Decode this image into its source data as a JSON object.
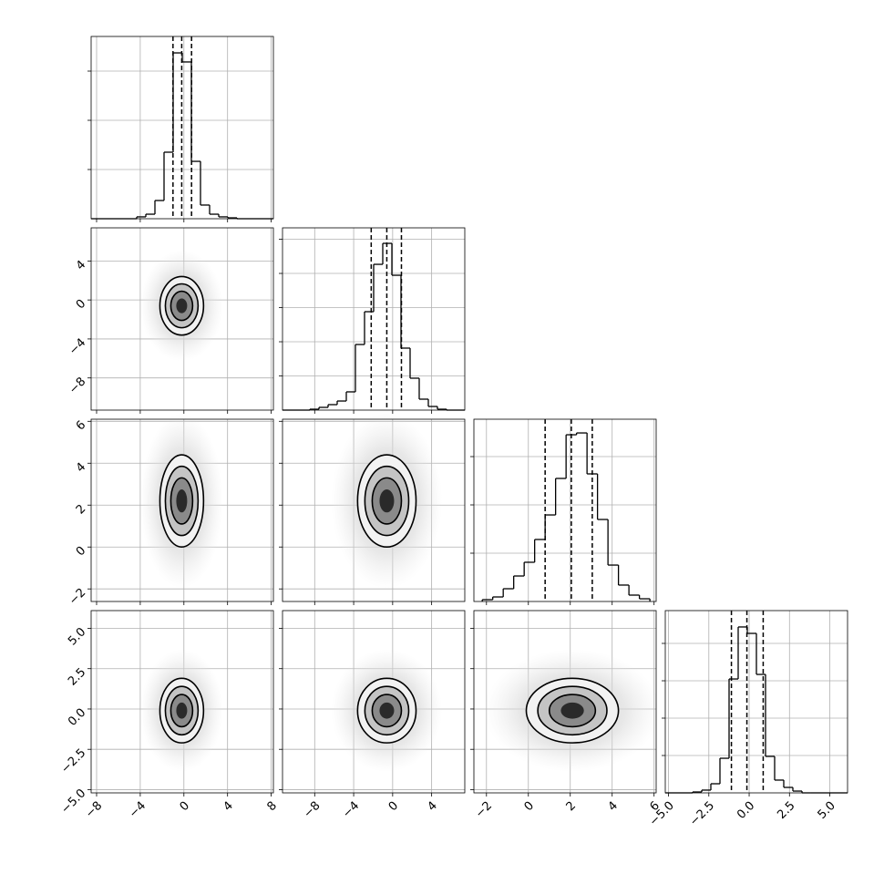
{
  "chart_data": {
    "type": "corner",
    "grid": true,
    "variables": [
      {
        "xlim": [
          -8.5,
          8.2
        ],
        "xticks": [
          {
            "value": -8,
            "label": "−8"
          },
          {
            "value": -4,
            "label": "−4"
          },
          0,
          4,
          8
        ]
      },
      {
        "xlim": [
          -11.3,
          7.4
        ],
        "xticks": [
          {
            "value": -8,
            "label": "−8"
          },
          {
            "value": -4,
            "label": "−4"
          },
          0,
          4
        ]
      },
      {
        "xlim": [
          -2.6,
          6.1
        ],
        "xticks": [
          {
            "value": -2,
            "label": "−2"
          },
          0,
          2,
          4,
          6
        ]
      },
      {
        "xlim": [
          -5.2,
          6.1
        ],
        "xticks": [
          {
            "value": -5,
            "label": "−5.0"
          },
          {
            "value": -2.5,
            "label": "−2.5"
          },
          {
            "value": 0,
            "label": "0.0"
          },
          {
            "value": 2.5,
            "label": "2.5"
          },
          {
            "value": 5,
            "label": "5.0"
          }
        ]
      }
    ],
    "histograms": [
      {
        "bins": [
          -8.5,
          -7.665,
          -6.83,
          -5.995,
          -5.16,
          -4.325,
          -3.49,
          -2.655,
          -1.82,
          -0.985,
          -0.15,
          0.685,
          1.52,
          2.355,
          3.19,
          4.025,
          4.86,
          5.695,
          6.53,
          7.365,
          8.2
        ],
        "counts": [
          0,
          0,
          0,
          0,
          0,
          19,
          46,
          185,
          676,
          1685,
          1593,
          583,
          139,
          46,
          19,
          9,
          0,
          0,
          0,
          0
        ],
        "ylim": [
          0,
          1852
        ],
        "yticks": [
          500,
          1000,
          1500
        ],
        "quantiles": [
          -1.0,
          -0.2,
          0.7
        ]
      },
      {
        "bins": [
          -11.3,
          -10.365,
          -9.43,
          -8.495,
          -7.56,
          -6.625,
          -5.69,
          -4.755,
          -3.82,
          -2.885,
          -1.95,
          -1.015,
          -0.08,
          0.855,
          1.79,
          2.725,
          3.66,
          4.595,
          5.53,
          6.465,
          7.4
        ],
        "counts": [
          0,
          0,
          0,
          13,
          40,
          80,
          133,
          267,
          960,
          1440,
          2133,
          2440,
          1973,
          907,
          467,
          160,
          53,
          13,
          0,
          0
        ],
        "ylim": [
          0,
          2667
        ],
        "yticks": [
          500,
          1000,
          1500,
          2000,
          2500
        ],
        "quantiles": [
          -2.2,
          -0.6,
          0.9
        ]
      },
      {
        "bins": [
          -2.2,
          -1.7,
          -1.2,
          -0.7,
          -0.2,
          0.3,
          0.8,
          1.3,
          1.8,
          2.3,
          2.8,
          3.3,
          3.8,
          4.3,
          4.8,
          5.3,
          5.8
        ],
        "counts": [
          19,
          47,
          132,
          264,
          406,
          642,
          896,
          1274,
          1726,
          1745,
          1321,
          849,
          377,
          170,
          66,
          28
        ],
        "ylim": [
          0,
          1887
        ],
        "yticks": [
          500,
          1000,
          1500
        ],
        "quantiles": [
          0.8,
          2.05,
          3.05
        ]
      },
      {
        "bins": [
          -5.2,
          -4.635,
          -4.07,
          -3.505,
          -2.94,
          -2.375,
          -1.81,
          -1.245,
          -0.68,
          -0.115,
          0.45,
          1.015,
          1.58,
          2.145,
          2.71,
          3.275,
          3.84,
          4.405,
          4.97,
          5.535,
          6.1
        ],
        "counts": [
          0,
          0,
          0,
          12,
          37,
          122,
          463,
          1524,
          2220,
          2134,
          1585,
          488,
          171,
          73,
          24,
          0,
          0,
          0,
          0,
          0
        ],
        "ylim": [
          0,
          2439
        ],
        "yticks": [
          500,
          1000,
          1500,
          2000
        ],
        "quantiles": [
          -1.1,
          -0.14,
          0.87
        ]
      }
    ],
    "pairs": [
      {
        "x": 0,
        "y": 1,
        "center": [
          -0.2,
          -0.6
        ],
        "contours": [
          [
            0.5,
            0.75
          ],
          [
            1,
            1.5
          ],
          [
            1.5,
            2.25
          ],
          [
            2,
            3
          ]
        ]
      },
      {
        "x": 0,
        "y": 2,
        "center": [
          -0.2,
          2.2
        ],
        "contours": [
          [
            0.5,
            0.55
          ],
          [
            1,
            1.1
          ],
          [
            1.5,
            1.65
          ],
          [
            2,
            2.2
          ]
        ]
      },
      {
        "x": 1,
        "y": 2,
        "center": [
          -0.6,
          2.2
        ],
        "contours": [
          [
            0.75,
            0.55
          ],
          [
            1.5,
            1.1
          ],
          [
            2.25,
            1.65
          ],
          [
            3,
            2.2
          ]
        ]
      },
      {
        "x": 0,
        "y": 3,
        "center": [
          -0.2,
          -0.1
        ],
        "contours": [
          [
            0.5,
            0.5
          ],
          [
            1,
            1
          ],
          [
            1.5,
            1.5
          ],
          [
            2,
            2
          ]
        ]
      },
      {
        "x": 1,
        "y": 3,
        "center": [
          -0.6,
          -0.1
        ],
        "contours": [
          [
            0.75,
            0.5
          ],
          [
            1.5,
            1
          ],
          [
            2.25,
            1.5
          ],
          [
            3,
            2
          ]
        ]
      },
      {
        "x": 2,
        "y": 3,
        "center": [
          2.1,
          -0.1
        ],
        "contours": [
          [
            0.55,
            0.5
          ],
          [
            1.1,
            1
          ],
          [
            1.65,
            1.5
          ],
          [
            2.2,
            2
          ]
        ]
      }
    ]
  }
}
